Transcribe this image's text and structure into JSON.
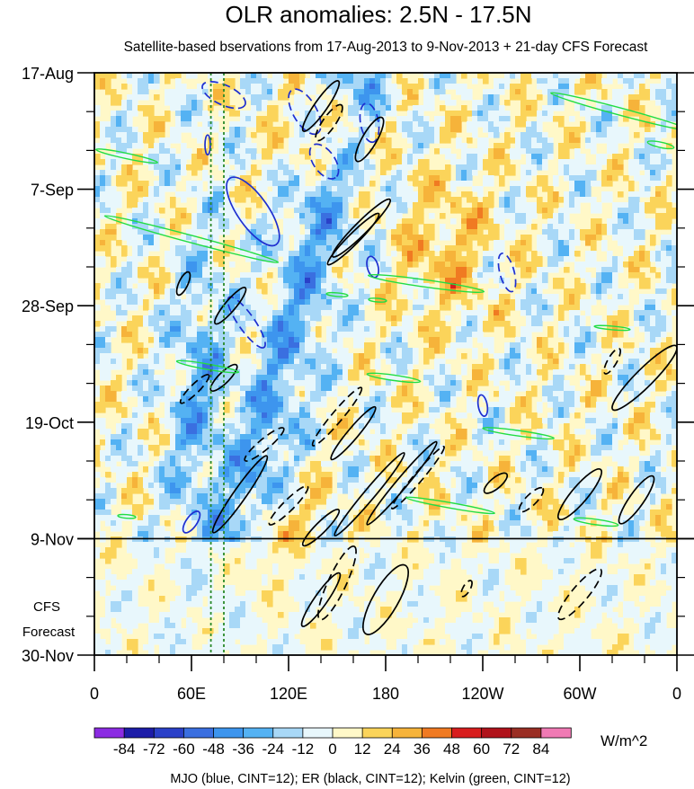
{
  "chart_data": {
    "type": "heatmap",
    "title": "OLR anomalies: 2.5N - 17.5N",
    "subtitle": "Satellite-based bservations from 17-Aug-2013 to 9-Nov-2013 + 21-day CFS Forecast",
    "y_labels": [
      "17-Aug",
      "7-Sep",
      "28-Sep",
      "19-Oct",
      "9-Nov",
      "30-Nov"
    ],
    "y_day_offsets": [
      0,
      21,
      42,
      63,
      84,
      105
    ],
    "x_labels": [
      "0",
      "60E",
      "120E",
      "180",
      "120W",
      "60W",
      "0"
    ],
    "x_lon": [
      0,
      60,
      120,
      180,
      240,
      300,
      360
    ],
    "xlim_lon": [
      0,
      360
    ],
    "ylim_days": [
      0,
      105
    ],
    "observation_end_day": 84,
    "forecast_label_line1": "CFS",
    "forecast_label_line2": "Forecast",
    "reference_lines_lon": [
      72,
      80
    ],
    "colorbar": {
      "levels": [
        "-84",
        "-72",
        "-60",
        "-48",
        "-36",
        "-24",
        "-12",
        "0",
        "12",
        "24",
        "36",
        "48",
        "60",
        "72",
        "84"
      ],
      "colors": [
        "#8b2be2",
        "#1c1ca8",
        "#2a40c8",
        "#3a6fe0",
        "#3d95ee",
        "#54b2f3",
        "#a8d8f7",
        "#e8f7fc",
        "#fff8c8",
        "#fbd45a",
        "#f6b33a",
        "#f07a22",
        "#d81d1d",
        "#b0121a",
        "#9a2e24",
        "#f07ab4"
      ],
      "unit": "W/m^2"
    },
    "footnote": "MJO (blue, CINT=12); ER (black, CINT=12); Kelvin (green, CINT=12)",
    "contour_series": [
      {
        "name": "MJO",
        "color": "#1e2fd0"
      },
      {
        "name": "ER",
        "color": "#000000"
      },
      {
        "name": "Kelvin",
        "color": "#22dd44"
      }
    ],
    "contours": [
      {
        "series": "MJO",
        "lon": 70,
        "day": 13,
        "rx": 11,
        "ry": 3,
        "rot": 90,
        "dash": false
      },
      {
        "series": "MJO",
        "lon": 80,
        "day": 4,
        "rx": 26,
        "ry": 11,
        "rot": 25,
        "dash": true
      },
      {
        "series": "MJO",
        "lon": 130,
        "day": 7,
        "rx": 28,
        "ry": 13,
        "rot": 60,
        "dash": true
      },
      {
        "series": "MJO",
        "lon": 142,
        "day": 16,
        "rx": 22,
        "ry": 12,
        "rot": 55,
        "dash": true
      },
      {
        "series": "MJO",
        "lon": 170,
        "day": 9,
        "rx": 22,
        "ry": 10,
        "rot": 80,
        "dash": true
      },
      {
        "series": "MJO",
        "lon": 98,
        "day": 25,
        "rx": 45,
        "ry": 17,
        "rot": 55,
        "dash": false
      },
      {
        "series": "MJO",
        "lon": 94,
        "day": 45,
        "rx": 34,
        "ry": 9,
        "rot": 55,
        "dash": true
      },
      {
        "series": "MJO",
        "lon": 172,
        "day": 35,
        "rx": 12,
        "ry": 6,
        "rot": 75,
        "dash": false
      },
      {
        "series": "MJO",
        "lon": 255,
        "day": 36,
        "rx": 22,
        "ry": 8,
        "rot": 75,
        "dash": true
      },
      {
        "series": "MJO",
        "lon": 240,
        "day": 60,
        "rx": 12,
        "ry": 5,
        "rot": 80,
        "dash": false
      },
      {
        "series": "MJO",
        "lon": 60,
        "day": 81,
        "rx": 14,
        "ry": 6,
        "rot": -55,
        "dash": false
      },
      {
        "series": "ER",
        "lon": 140,
        "day": 6,
        "rx": 34,
        "ry": 7,
        "rot": -55,
        "dash": false
      },
      {
        "series": "ER",
        "lon": 145,
        "day": 9,
        "rx": 24,
        "ry": 7,
        "rot": -55,
        "dash": true
      },
      {
        "series": "ER",
        "lon": 170,
        "day": 12,
        "rx": 28,
        "ry": 8,
        "rot": -60,
        "dash": false
      },
      {
        "series": "ER",
        "lon": 165,
        "day": 28,
        "rx": 45,
        "ry": 7,
        "rot": -45,
        "dash": false
      },
      {
        "series": "ER",
        "lon": 160,
        "day": 30,
        "rx": 40,
        "ry": 6,
        "rot": -45,
        "dash": false
      },
      {
        "series": "ER",
        "lon": 55,
        "day": 38,
        "rx": 14,
        "ry": 5,
        "rot": -65,
        "dash": false
      },
      {
        "series": "ER",
        "lon": 84,
        "day": 42,
        "rx": 26,
        "ry": 6,
        "rot": -50,
        "dash": false
      },
      {
        "series": "ER",
        "lon": 80,
        "day": 55,
        "rx": 20,
        "ry": 6,
        "rot": -45,
        "dash": false
      },
      {
        "series": "ER",
        "lon": 62,
        "day": 57,
        "rx": 22,
        "ry": 5,
        "rot": -45,
        "dash": true
      },
      {
        "series": "ER",
        "lon": 105,
        "day": 67,
        "rx": 28,
        "ry": 6,
        "rot": -40,
        "dash": true
      },
      {
        "series": "ER",
        "lon": 150,
        "day": 62,
        "rx": 42,
        "ry": 6,
        "rot": -50,
        "dash": true
      },
      {
        "series": "ER",
        "lon": 160,
        "day": 65,
        "rx": 38,
        "ry": 6,
        "rot": -50,
        "dash": false
      },
      {
        "series": "ER",
        "lon": 120,
        "day": 78,
        "rx": 30,
        "ry": 6,
        "rot": -45,
        "dash": true
      },
      {
        "series": "ER",
        "lon": 90,
        "day": 76,
        "rx": 52,
        "ry": 7,
        "rot": -55,
        "dash": false
      },
      {
        "series": "ER",
        "lon": 140,
        "day": 82,
        "rx": 28,
        "ry": 6,
        "rot": -45,
        "dash": false
      },
      {
        "series": "ER",
        "lon": 170,
        "day": 76,
        "rx": 60,
        "ry": 6,
        "rot": -50,
        "dash": false
      },
      {
        "series": "ER",
        "lon": 190,
        "day": 74,
        "rx": 60,
        "ry": 6,
        "rot": -50,
        "dash": false
      },
      {
        "series": "ER",
        "lon": 200,
        "day": 73,
        "rx": 45,
        "ry": 5,
        "rot": -50,
        "dash": true
      },
      {
        "series": "ER",
        "lon": 150,
        "day": 92,
        "rx": 45,
        "ry": 10,
        "rot": -65,
        "dash": true
      },
      {
        "series": "ER",
        "lon": 140,
        "day": 95,
        "rx": 36,
        "ry": 7,
        "rot": -55,
        "dash": false
      },
      {
        "series": "ER",
        "lon": 180,
        "day": 95,
        "rx": 44,
        "ry": 14,
        "rot": -60,
        "dash": false
      },
      {
        "series": "ER",
        "lon": 300,
        "day": 94,
        "rx": 36,
        "ry": 9,
        "rot": -50,
        "dash": true
      },
      {
        "series": "ER",
        "lon": 248,
        "day": 74,
        "rx": 16,
        "ry": 6,
        "rot": -40,
        "dash": false
      },
      {
        "series": "ER",
        "lon": 270,
        "day": 77,
        "rx": 18,
        "ry": 6,
        "rot": -45,
        "dash": true
      },
      {
        "series": "ER",
        "lon": 300,
        "day": 76,
        "rx": 36,
        "ry": 9,
        "rot": -50,
        "dash": false
      },
      {
        "series": "ER",
        "lon": 335,
        "day": 77,
        "rx": 32,
        "ry": 8,
        "rot": -55,
        "dash": false
      },
      {
        "series": "ER",
        "lon": 340,
        "day": 55,
        "rx": 50,
        "ry": 10,
        "rot": -45,
        "dash": false
      },
      {
        "series": "ER",
        "lon": 320,
        "day": 52,
        "rx": 16,
        "ry": 5,
        "rot": -60,
        "dash": true
      },
      {
        "series": "ER",
        "lon": 230,
        "day": 93,
        "rx": 10,
        "ry": 4,
        "rot": -60,
        "dash": true
      },
      {
        "series": "Kelvin",
        "lon": 325,
        "day": 7,
        "rx": 80,
        "ry": 4,
        "rot": 15,
        "dash": false
      },
      {
        "series": "Kelvin",
        "lon": 20,
        "day": 15,
        "rx": 35,
        "ry": 3,
        "rot": 12,
        "dash": false
      },
      {
        "series": "Kelvin",
        "lon": 350,
        "day": 13,
        "rx": 15,
        "ry": 3,
        "rot": 12,
        "dash": false
      },
      {
        "series": "Kelvin",
        "lon": 60,
        "day": 30,
        "rx": 100,
        "ry": 4,
        "rot": 15,
        "dash": false
      },
      {
        "series": "Kelvin",
        "lon": 205,
        "day": 38,
        "rx": 65,
        "ry": 4,
        "rot": 8,
        "dash": false
      },
      {
        "series": "Kelvin",
        "lon": 150,
        "day": 40,
        "rx": 12,
        "ry": 2,
        "rot": 5,
        "dash": false
      },
      {
        "series": "Kelvin",
        "lon": 175,
        "day": 41,
        "rx": 10,
        "ry": 2,
        "rot": 5,
        "dash": false
      },
      {
        "series": "Kelvin",
        "lon": 70,
        "day": 53,
        "rx": 35,
        "ry": 3,
        "rot": 10,
        "dash": false
      },
      {
        "series": "Kelvin",
        "lon": 185,
        "day": 55,
        "rx": 30,
        "ry": 3,
        "rot": 8,
        "dash": false
      },
      {
        "series": "Kelvin",
        "lon": 262,
        "day": 65,
        "rx": 40,
        "ry": 3,
        "rot": 8,
        "dash": false
      },
      {
        "series": "Kelvin",
        "lon": 220,
        "day": 78,
        "rx": 50,
        "ry": 3,
        "rot": 10,
        "dash": false
      },
      {
        "series": "Kelvin",
        "lon": 310,
        "day": 81,
        "rx": 25,
        "ry": 3,
        "rot": 8,
        "dash": false
      },
      {
        "series": "Kelvin",
        "lon": 320,
        "day": 46,
        "rx": 20,
        "ry": 2,
        "rot": 5,
        "dash": false
      },
      {
        "series": "Kelvin",
        "lon": 20,
        "day": 80,
        "rx": 10,
        "ry": 2,
        "rot": 5,
        "dash": false
      }
    ]
  }
}
